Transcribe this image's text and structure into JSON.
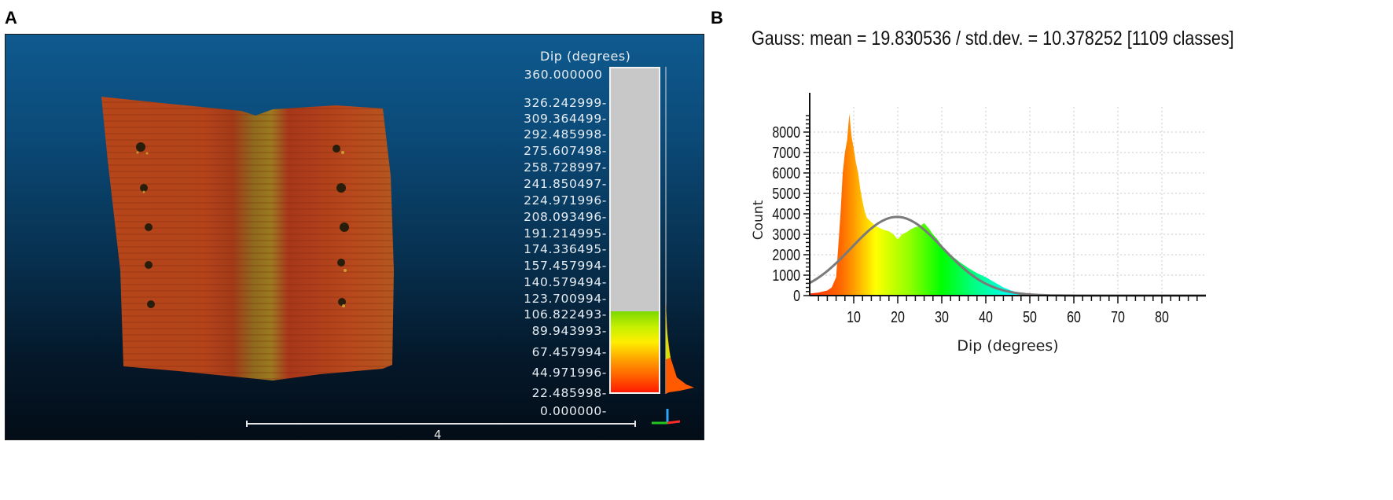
{
  "panels": {
    "a_label": "A",
    "b_label": "B"
  },
  "viewer": {
    "colorbar": {
      "title": "Dip (degrees)",
      "labels": [
        "360.000000",
        "326.242999",
        "309.364499",
        "292.485998",
        "275.607498",
        "258.728997",
        "241.850497",
        "224.971996",
        "208.093496",
        "191.214995",
        "174.336495",
        "157.457994",
        "140.579494",
        "123.700994",
        "106.822493",
        "89.943993",
        "67.457994",
        "44.971996",
        "22.485998",
        "0.000000"
      ],
      "label_tops": [
        42,
        78,
        98,
        118,
        139,
        160,
        181,
        202,
        223,
        244,
        264,
        285,
        306,
        327,
        347,
        368,
        395,
        421,
        447,
        470
      ],
      "fill_top_value": 89.943993,
      "max_value": 360
    },
    "scale_bar_label": "4",
    "background_top": "#0f5a8f",
    "background_bottom": "#030d17"
  },
  "chart_data": {
    "type": "bar",
    "title": "Gauss: mean = 19.830536 / std.dev. = 10.378252 [1109 classes]",
    "xlabel": "Dip (degrees)",
    "ylabel": "Count",
    "xlim": [
      0,
      90
    ],
    "ylim": [
      0,
      8800
    ],
    "x_ticks": [
      10,
      20,
      30,
      40,
      50,
      60,
      70,
      80
    ],
    "y_ticks": [
      0,
      1000,
      2000,
      3000,
      4000,
      5000,
      6000,
      7000,
      8000
    ],
    "grid": true,
    "gauss": {
      "mean": 19.830536,
      "std_dev": 10.378252,
      "classes": 1109,
      "peak": 3850
    },
    "histogram_envelope": {
      "x": [
        0,
        2,
        4,
        5,
        6,
        7,
        7.5,
        8,
        8.5,
        9,
        9.5,
        10,
        10.5,
        11,
        11.5,
        12,
        12.5,
        13,
        14,
        15,
        16,
        17,
        18,
        19,
        20,
        21,
        22,
        23,
        24,
        25,
        26,
        27,
        28,
        29,
        30,
        31,
        32,
        34,
        36,
        38,
        40,
        42,
        44,
        46,
        48,
        50,
        52,
        54,
        60,
        70,
        80,
        90
      ],
      "counts": [
        100,
        150,
        250,
        400,
        900,
        4000,
        6000,
        7000,
        7600,
        8900,
        7800,
        7200,
        6500,
        6000,
        5200,
        4600,
        4100,
        3800,
        3600,
        3400,
        3300,
        3200,
        3150,
        3000,
        2750,
        3000,
        3100,
        3250,
        3350,
        3400,
        3550,
        3300,
        3000,
        2750,
        2450,
        2200,
        2000,
        1650,
        1350,
        1100,
        900,
        650,
        400,
        230,
        120,
        60,
        30,
        15,
        10,
        8,
        6,
        5
      ]
    }
  }
}
